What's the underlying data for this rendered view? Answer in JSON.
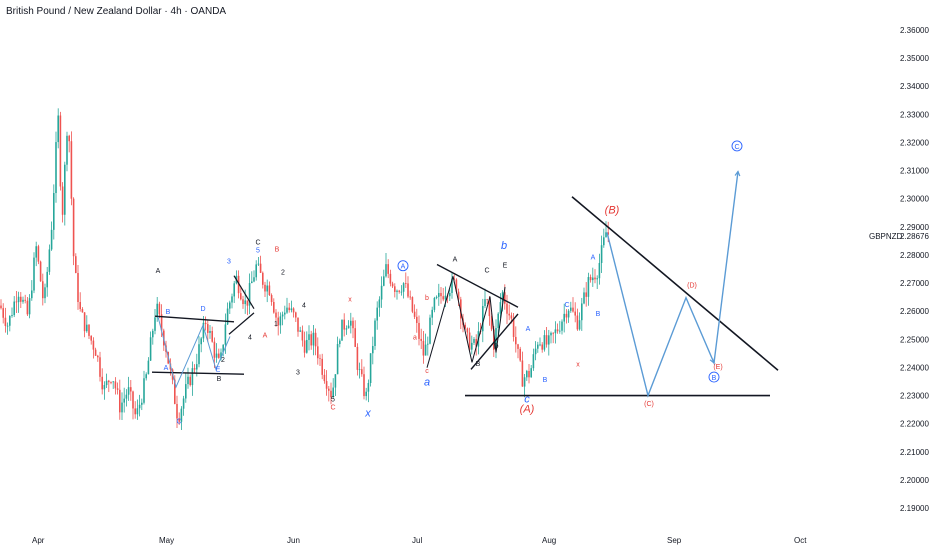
{
  "header": {
    "title": "British Pound / New Zealand Dollar · 4h · OANDA"
  },
  "colors": {
    "up": "#26a69a",
    "down": "#ef5350",
    "wave_black": "#131722",
    "wave_red": "#e53935",
    "wave_blue": "#2962ff",
    "projection": "#5b9bd5"
  },
  "chart_data": {
    "type": "candlestick",
    "symbol_label": "GBPNZD",
    "last_price": "2.28676",
    "ylim": [
      2.185,
      2.365
    ],
    "y_ticks": [
      "2.19000",
      "2.20000",
      "2.21000",
      "2.22000",
      "2.23000",
      "2.24000",
      "2.25000",
      "2.26000",
      "2.27000",
      "2.28000",
      "2.29000",
      "2.30000",
      "2.31000",
      "2.32000",
      "2.33000",
      "2.34000",
      "2.35000",
      "2.36000"
    ],
    "x_ticks": [
      "Apr",
      "May",
      "Jun",
      "Jul",
      "Aug",
      "Sep",
      "Oct"
    ],
    "price_path": [
      [
        0,
        2.262
      ],
      [
        8,
        2.255
      ],
      [
        18,
        2.268
      ],
      [
        28,
        2.258
      ],
      [
        36,
        2.283
      ],
      [
        44,
        2.262
      ],
      [
        52,
        2.292
      ],
      [
        58,
        2.33
      ],
      [
        62,
        2.292
      ],
      [
        68,
        2.332
      ],
      [
        74,
        2.276
      ],
      [
        80,
        2.26
      ],
      [
        88,
        2.252
      ],
      [
        96,
        2.246
      ],
      [
        104,
        2.232
      ],
      [
        112,
        2.238
      ],
      [
        120,
        2.226
      ],
      [
        128,
        2.232
      ],
      [
        136,
        2.222
      ],
      [
        146,
        2.236
      ],
      [
        156,
        2.262
      ],
      [
        166,
        2.247
      ],
      [
        178,
        2.222
      ],
      [
        186,
        2.232
      ],
      [
        196,
        2.242
      ],
      [
        206,
        2.257
      ],
      [
        214,
        2.246
      ],
      [
        220,
        2.24
      ],
      [
        226,
        2.258
      ],
      [
        236,
        2.272
      ],
      [
        246,
        2.262
      ],
      [
        256,
        2.276
      ],
      [
        264,
        2.27
      ],
      [
        270,
        2.268
      ],
      [
        278,
        2.255
      ],
      [
        286,
        2.262
      ],
      [
        294,
        2.258
      ],
      [
        304,
        2.248
      ],
      [
        314,
        2.25
      ],
      [
        322,
        2.24
      ],
      [
        332,
        2.23
      ],
      [
        340,
        2.253
      ],
      [
        350,
        2.258
      ],
      [
        358,
        2.24
      ],
      [
        366,
        2.229
      ],
      [
        376,
        2.258
      ],
      [
        386,
        2.275
      ],
      [
        396,
        2.268
      ],
      [
        404,
        2.27
      ],
      [
        414,
        2.258
      ],
      [
        424,
        2.244
      ],
      [
        434,
        2.262
      ],
      [
        446,
        2.268
      ],
      [
        456,
        2.27
      ],
      [
        466,
        2.25
      ],
      [
        476,
        2.247
      ],
      [
        486,
        2.265
      ],
      [
        494,
        2.248
      ],
      [
        502,
        2.267
      ],
      [
        512,
        2.256
      ],
      [
        522,
        2.236
      ],
      [
        530,
        2.238
      ],
      [
        538,
        2.25
      ],
      [
        548,
        2.248
      ],
      [
        558,
        2.254
      ],
      [
        568,
        2.262
      ],
      [
        578,
        2.256
      ],
      [
        588,
        2.27
      ],
      [
        598,
        2.275
      ],
      [
        606,
        2.288
      ],
      [
        610,
        2.287
      ]
    ],
    "lines": {
      "support_line": [
        [
          465,
          2.23
        ],
        [
          770,
          2.23
        ]
      ],
      "resistance_line": [
        [
          572,
          2.3007
        ],
        [
          778,
          2.239
        ]
      ],
      "may_triangle_top": [
        [
          155,
          2.2582
        ],
        [
          234,
          2.2562
        ]
      ],
      "may_triangle_bottom": [
        [
          152,
          2.2383
        ],
        [
          244,
          2.2376
        ]
      ],
      "may_small_top": [
        [
          234,
          2.2726
        ],
        [
          254,
          2.2609
        ]
      ],
      "may_small_bottom": [
        [
          229,
          2.2518
        ],
        [
          254,
          2.2594
        ]
      ],
      "july_triangle_top": [
        [
          437,
          2.2766
        ],
        [
          518,
          2.2614
        ]
      ],
      "july_triangle_bottom": [
        [
          471,
          2.2393
        ],
        [
          518,
          2.259
        ]
      ],
      "june_channel": [
        [
          200,
          2.259
        ],
        [
          211,
          2.2446
        ]
      ]
    },
    "wave_paths": {
      "may_triangle_path": [
        [
          158,
          2.258
        ],
        [
          176,
          2.233
        ],
        [
          203,
          2.255
        ],
        [
          216,
          2.2393
        ],
        [
          230,
          2.251
        ]
      ],
      "july_triangle_path": [
        [
          427,
          2.2399
        ],
        [
          453,
          2.2724
        ],
        [
          472,
          2.2418
        ],
        [
          490,
          2.2652
        ],
        [
          496,
          2.2453
        ],
        [
          505,
          2.2686
        ]
      ],
      "projection_path": [
        [
          607,
          2.288
        ],
        [
          648,
          2.23
        ],
        [
          686,
          2.2648
        ],
        [
          714,
          2.2416
        ],
        [
          738,
          2.3097
        ]
      ]
    },
    "wave_labels": [
      {
        "text": "A",
        "x": 158,
        "y": 2.2735,
        "color": "black"
      },
      {
        "text": "B",
        "x": 168,
        "y": 2.259,
        "color": "blue"
      },
      {
        "text": "A",
        "x": 166,
        "y": 2.239,
        "color": "blue"
      },
      {
        "text": "C",
        "x": 179,
        "y": 2.22,
        "color": "blue"
      },
      {
        "text": "D",
        "x": 203,
        "y": 2.26,
        "color": "blue"
      },
      {
        "text": "E",
        "x": 218,
        "y": 2.2385,
        "color": "blue"
      },
      {
        "text": "B",
        "x": 219,
        "y": 2.2352,
        "color": "black"
      },
      {
        "text": "2",
        "x": 223,
        "y": 2.242,
        "color": "black"
      },
      {
        "text": "3",
        "x": 229,
        "y": 2.277,
        "color": "blue"
      },
      {
        "text": "4",
        "x": 250,
        "y": 2.25,
        "color": "black"
      },
      {
        "text": "C",
        "x": 258,
        "y": 2.2837,
        "color": "black"
      },
      {
        "text": "5",
        "x": 258,
        "y": 2.2808,
        "color": "blue"
      },
      {
        "text": "B",
        "x": 277,
        "y": 2.2812,
        "color": "red"
      },
      {
        "text": "A",
        "x": 265,
        "y": 2.2507,
        "color": "red"
      },
      {
        "text": "1",
        "x": 276,
        "y": 2.2547,
        "color": "black"
      },
      {
        "text": "2",
        "x": 283,
        "y": 2.273,
        "color": "black"
      },
      {
        "text": "4",
        "x": 304,
        "y": 2.2613,
        "color": "black"
      },
      {
        "text": "3",
        "x": 298,
        "y": 2.2375,
        "color": "black"
      },
      {
        "text": "5",
        "x": 333,
        "y": 2.2278,
        "color": "black"
      },
      {
        "text": "C",
        "x": 333,
        "y": 2.225,
        "color": "red"
      },
      {
        "text": "x",
        "x": 350,
        "y": 2.2635,
        "color": "red"
      },
      {
        "text": "x",
        "x": 368,
        "y": 2.2225,
        "color": "blue",
        "big": true
      },
      {
        "text": "A",
        "x": 403,
        "y": 2.2751,
        "color": "blue",
        "circled": true
      },
      {
        "text": "b",
        "x": 427,
        "y": 2.264,
        "color": "red"
      },
      {
        "text": "a",
        "x": 415,
        "y": 2.25,
        "color": "red"
      },
      {
        "text": "c",
        "x": 427,
        "y": 2.238,
        "color": "red"
      },
      {
        "text": "a",
        "x": 427,
        "y": 2.2335,
        "color": "blue",
        "big": true
      },
      {
        "text": "A",
        "x": 455,
        "y": 2.2777,
        "color": "black"
      },
      {
        "text": "C",
        "x": 487,
        "y": 2.2738,
        "color": "black"
      },
      {
        "text": "E",
        "x": 505,
        "y": 2.2755,
        "color": "black"
      },
      {
        "text": "b",
        "x": 504,
        "y": 2.2821,
        "color": "blue",
        "big": true
      },
      {
        "text": "B",
        "x": 478,
        "y": 2.2405,
        "color": "black"
      },
      {
        "text": "D",
        "x": 496,
        "y": 2.2468,
        "color": "black"
      },
      {
        "text": "A",
        "x": 528,
        "y": 2.253,
        "color": "blue"
      },
      {
        "text": "c",
        "x": 527,
        "y": 2.2275,
        "color": "blue",
        "big": true
      },
      {
        "text": "(A)",
        "x": 527,
        "y": 2.224,
        "color": "red",
        "big": true
      },
      {
        "text": "B",
        "x": 545,
        "y": 2.2348,
        "color": "blue"
      },
      {
        "text": "C",
        "x": 567,
        "y": 2.2615,
        "color": "blue"
      },
      {
        "text": "A",
        "x": 593,
        "y": 2.2783,
        "color": "blue"
      },
      {
        "text": "B",
        "x": 598,
        "y": 2.2583,
        "color": "blue"
      },
      {
        "text": "x",
        "x": 578,
        "y": 2.2403,
        "color": "red"
      },
      {
        "text": "(B)",
        "x": 612,
        "y": 2.2948,
        "color": "red",
        "big": true
      },
      {
        "text": "(C)",
        "x": 649,
        "y": 2.2262,
        "color": "red"
      },
      {
        "text": "(D)",
        "x": 692,
        "y": 2.2685,
        "color": "red"
      },
      {
        "text": "(E)",
        "x": 718,
        "y": 2.2395,
        "color": "red"
      },
      {
        "text": "B",
        "x": 714,
        "y": 2.2355,
        "color": "blue",
        "circled": true
      },
      {
        "text": "C",
        "x": 737,
        "y": 2.3177,
        "color": "blue",
        "circled": true
      }
    ]
  }
}
